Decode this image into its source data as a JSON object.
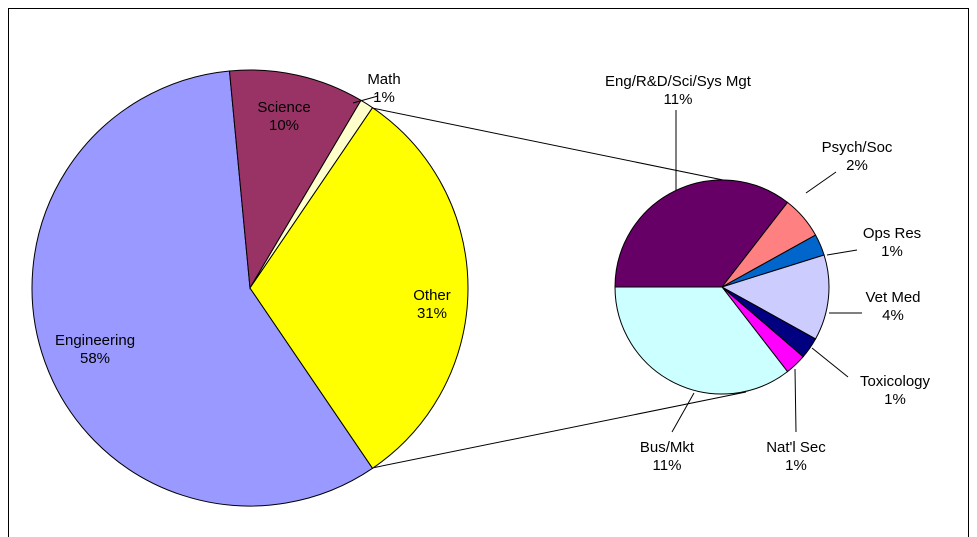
{
  "chart_data": [
    {
      "type": "pie",
      "categories": [
        "Engineering",
        "Science",
        "Math",
        "Other"
      ],
      "values": [
        58,
        10,
        1,
        31
      ],
      "value_labels": [
        "58%",
        "10%",
        "1%",
        "31%"
      ],
      "colors": [
        "#9999ff",
        "#993366",
        "#ffffcc",
        "#ffff00"
      ]
    },
    {
      "type": "pie",
      "categories": [
        "Eng/R&D/Sci/Sys Mgt",
        "Psych/Soc",
        "Ops Res",
        "Vet Med",
        "Toxicology",
        "Nat'l Sec",
        "Bus/Mkt"
      ],
      "values": [
        11,
        2,
        1,
        4,
        1,
        1,
        11
      ],
      "value_labels": [
        "11%",
        "2%",
        "1%",
        "4%",
        "1%",
        "1%",
        "11%"
      ],
      "colors": [
        "#660066",
        "#ff8080",
        "#0066cc",
        "#ccccff",
        "#000080",
        "#ff00ff",
        "#ccffff"
      ]
    }
  ]
}
